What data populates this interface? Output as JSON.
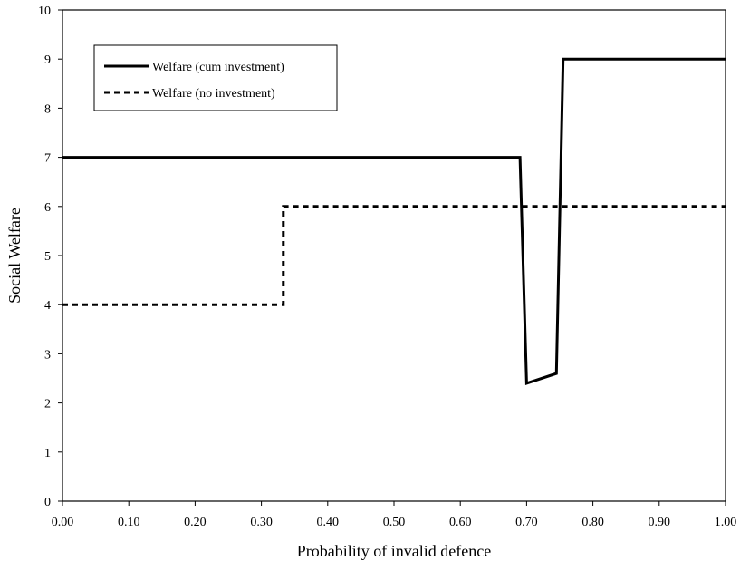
{
  "chart_data": {
    "type": "line",
    "title": "",
    "xlabel": "Probability of invalid defence",
    "ylabel": "Social Welfare",
    "xlim": [
      0,
      1
    ],
    "ylim": [
      0,
      10
    ],
    "xticks": [
      "0.00",
      "0.10",
      "0.20",
      "0.30",
      "0.40",
      "0.50",
      "0.60",
      "0.70",
      "0.80",
      "0.90",
      "1.00"
    ],
    "yticks": [
      "0",
      "1",
      "2",
      "3",
      "4",
      "5",
      "6",
      "7",
      "8",
      "9",
      "10"
    ],
    "grid": false,
    "legend_position": "top-left",
    "series": [
      {
        "name": "Welfare (cum investment)",
        "style": "solid",
        "color": "#000000",
        "x": [
          0.0,
          0.69,
          0.7,
          0.745,
          0.755,
          1.0
        ],
        "y": [
          7.0,
          7.0,
          2.4,
          2.6,
          9.0,
          9.0
        ]
      },
      {
        "name": "Welfare (no investment)",
        "style": "dashed",
        "color": "#000000",
        "x": [
          0.0,
          0.333,
          0.333,
          1.0
        ],
        "y": [
          4.0,
          4.0,
          6.0,
          6.0
        ]
      }
    ]
  }
}
